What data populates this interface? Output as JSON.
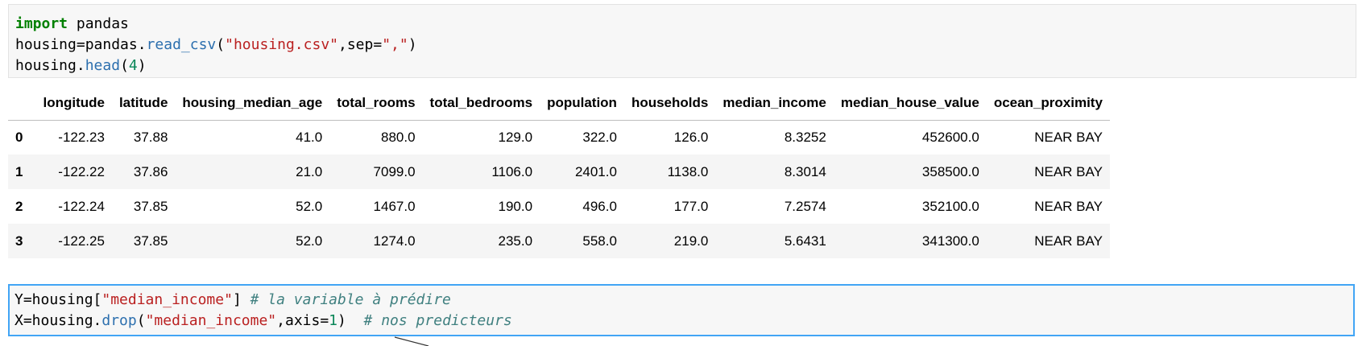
{
  "cell1": {
    "line1_kw": "import",
    "line1_rest": " pandas",
    "line2_a": "housing=pandas.",
    "line2_fn": "read_csv",
    "line2_b": "(",
    "line2_str1": "\"housing.csv\"",
    "line2_c": ",sep=",
    "line2_str2": "\",\"",
    "line2_d": ")",
    "line3_a": "housing.",
    "line3_fn": "head",
    "line3_b": "(",
    "line3_num": "4",
    "line3_c": ")"
  },
  "table": {
    "columns": [
      "longitude",
      "latitude",
      "housing_median_age",
      "total_rooms",
      "total_bedrooms",
      "population",
      "households",
      "median_income",
      "median_house_value",
      "ocean_proximity"
    ],
    "rows": [
      {
        "index": "0",
        "cells": [
          "-122.23",
          "37.88",
          "41.0",
          "880.0",
          "129.0",
          "322.0",
          "126.0",
          "8.3252",
          "452600.0",
          "NEAR BAY"
        ]
      },
      {
        "index": "1",
        "cells": [
          "-122.22",
          "37.86",
          "21.0",
          "7099.0",
          "1106.0",
          "2401.0",
          "1138.0",
          "8.3014",
          "358500.0",
          "NEAR BAY"
        ]
      },
      {
        "index": "2",
        "cells": [
          "-122.24",
          "37.85",
          "52.0",
          "1467.0",
          "190.0",
          "496.0",
          "177.0",
          "7.2574",
          "352100.0",
          "NEAR BAY"
        ]
      },
      {
        "index": "3",
        "cells": [
          "-122.25",
          "37.85",
          "52.0",
          "1274.0",
          "235.0",
          "558.0",
          "219.0",
          "5.6431",
          "341300.0",
          "NEAR BAY"
        ]
      }
    ]
  },
  "cell2": {
    "line1_a": "Y=housing[",
    "line1_str": "\"median_income\"",
    "line1_b": "] ",
    "line1_cm": "# la variable à prédire",
    "line2_a": "X=housing.",
    "line2_fn": "drop",
    "line2_b": "(",
    "line2_str": "\"median_income\"",
    "line2_c": ",axis=",
    "line2_num": "1",
    "line2_d": ")  ",
    "line2_cm": "# nos predicteurs"
  },
  "colors": {
    "keyword": "#008000",
    "function": "#2c6fae",
    "string": "#ba2121",
    "number": "#098658",
    "comment": "#408080",
    "active_cell_border": "#42a5f5"
  }
}
